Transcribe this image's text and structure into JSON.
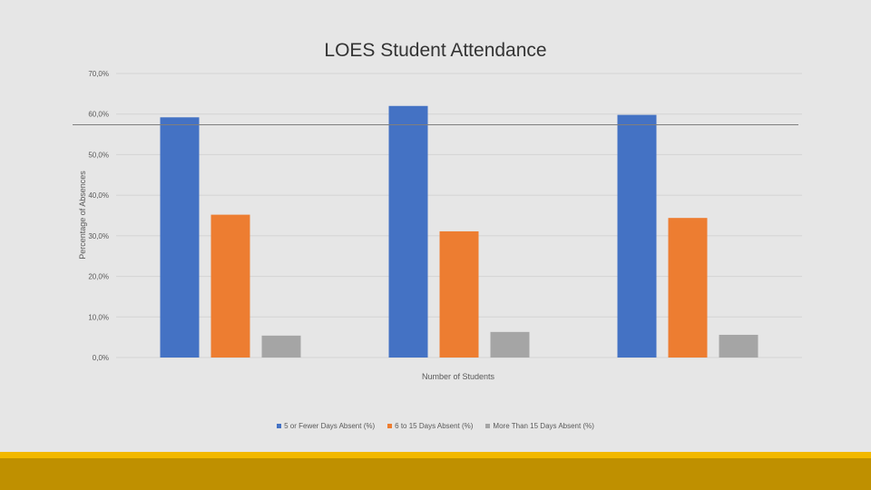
{
  "slide": {
    "accent_colors": {
      "thin": "#f2b800",
      "band": "#bf9000",
      "background": "#e6e6e6"
    }
  },
  "chart_data": {
    "type": "bar",
    "title": "LOES Student Attendance",
    "xlabel": "Number of Students",
    "ylabel": "Percentage of Absences",
    "categories": [
      "",
      "",
      ""
    ],
    "ylim": [
      0,
      70
    ],
    "yticks": [
      0,
      10,
      20,
      30,
      40,
      50,
      60,
      70
    ],
    "ytick_labels": [
      "0,0%",
      "10,0%",
      "20,0%",
      "30,0%",
      "40,0%",
      "50,0%",
      "60,0%",
      "70,0%"
    ],
    "grid": true,
    "legend_position": "bottom",
    "series": [
      {
        "name": "5 or Fewer Days Absent (%)",
        "color": "#4472c4",
        "values": [
          59.2,
          62.0,
          59.8
        ]
      },
      {
        "name": "6 to 15 Days Absent (%)",
        "color": "#ed7d31",
        "values": [
          35.2,
          31.1,
          34.4
        ]
      },
      {
        "name": "More Than 15 Days Absent (%)",
        "color": "#a5a5a5",
        "values": [
          5.4,
          6.3,
          5.6
        ]
      }
    ],
    "reference_line": {
      "value": 57.5,
      "color": "#7f7f7f"
    }
  }
}
